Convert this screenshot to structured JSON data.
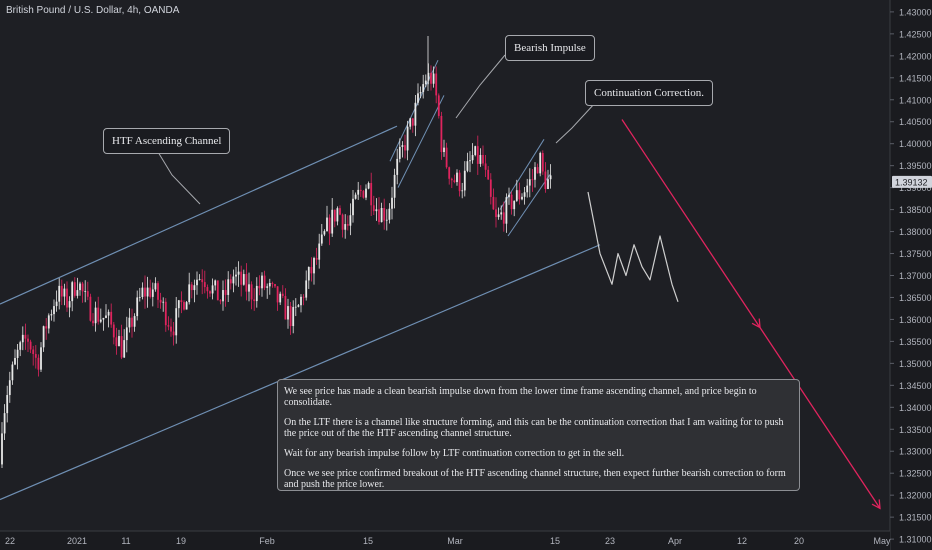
{
  "symbol_title": "British Pound / U.S. Dollar, 4h, OANDA",
  "colors": {
    "background": "#1e1f24",
    "up_candle": "#e8e8e8",
    "down_candle": "#e0245e",
    "channel_line": "#6f8fb3",
    "arrow": "#e0245e",
    "sketch": "#cfcfcf",
    "axis_text": "#b2b5be"
  },
  "annotations": {
    "htf_channel": "HTF Ascending Channel",
    "bearish_impulse": "Bearish Impulse",
    "continuation_correction": "Continuation Correction."
  },
  "note": {
    "p1": "We see price has made a clean bearish impulse down from the lower time frame ascending channel, and price begin to consolidate.",
    "p2": "On the  LTF there is a channel like structure forming, and this can be the continuation correction that I am waiting for to push the price out of the the HTF ascending channel structure.",
    "p3": "Wait for any bearish impulse follow by LTF continuation correction to get in the sell.",
    "p4": "Once we see price confirmed breakout of the HTF ascending channel structure, then expect further bearish correction to form and push the price lower."
  },
  "chart_data": {
    "type": "candlestick",
    "ylim": [
      1.309,
      1.431
    ],
    "y_ticks": [
      "1.43000",
      "1.42500",
      "1.42000",
      "1.41500",
      "1.41000",
      "1.40500",
      "1.40000",
      "1.39500",
      "1.39000",
      "1.38500",
      "1.38000",
      "1.37500",
      "1.37000",
      "1.36500",
      "1.36000",
      "1.35500",
      "1.35000",
      "1.34500",
      "1.34000",
      "1.33500",
      "1.33000",
      "1.32500",
      "1.32000",
      "1.31500",
      "1.31000"
    ],
    "x_ticks": [
      "22",
      "2021",
      "11",
      "19",
      "Feb",
      "15",
      "Mar",
      "15",
      "23",
      "Apr",
      "12",
      "20",
      "May"
    ],
    "last_price": "1.39132",
    "path": [
      [
        0,
        1.318
      ],
      [
        4,
        1.336
      ],
      [
        10,
        1.344
      ],
      [
        20,
        1.352
      ],
      [
        30,
        1.356
      ],
      [
        40,
        1.35
      ],
      [
        50,
        1.36
      ],
      [
        60,
        1.366
      ],
      [
        70,
        1.364
      ],
      [
        80,
        1.369
      ],
      [
        90,
        1.363
      ],
      [
        100,
        1.361
      ],
      [
        110,
        1.36
      ],
      [
        120,
        1.356
      ],
      [
        125,
        1.353
      ],
      [
        135,
        1.36
      ],
      [
        145,
        1.366
      ],
      [
        155,
        1.367
      ],
      [
        165,
        1.363
      ],
      [
        175,
        1.358
      ],
      [
        185,
        1.364
      ],
      [
        195,
        1.369
      ],
      [
        205,
        1.37
      ],
      [
        215,
        1.367
      ],
      [
        225,
        1.364
      ],
      [
        235,
        1.37
      ],
      [
        245,
        1.368
      ],
      [
        255,
        1.366
      ],
      [
        265,
        1.368
      ],
      [
        275,
        1.366
      ],
      [
        285,
        1.363
      ],
      [
        295,
        1.36
      ],
      [
        300,
        1.362
      ],
      [
        310,
        1.369
      ],
      [
        320,
        1.374
      ],
      [
        330,
        1.381
      ],
      [
        340,
        1.385
      ],
      [
        350,
        1.381
      ],
      [
        360,
        1.388
      ],
      [
        370,
        1.391
      ],
      [
        380,
        1.385
      ],
      [
        390,
        1.384
      ],
      [
        400,
        1.395
      ],
      [
        410,
        1.402
      ],
      [
        420,
        1.409
      ],
      [
        428,
        1.415
      ],
      [
        435,
        1.415
      ],
      [
        440,
        1.409
      ],
      [
        445,
        1.398
      ],
      [
        455,
        1.392
      ],
      [
        465,
        1.391
      ],
      [
        475,
        1.397
      ],
      [
        485,
        1.396
      ],
      [
        492,
        1.388
      ],
      [
        498,
        1.382
      ],
      [
        505,
        1.384
      ],
      [
        515,
        1.387
      ],
      [
        525,
        1.389
      ],
      [
        535,
        1.392
      ],
      [
        542,
        1.397
      ],
      [
        546,
        1.392
      ],
      [
        552,
        1.391
      ]
    ],
    "channel": {
      "upper": [
        [
          0,
          1.3635
        ],
        [
          397,
          1.404
        ]
      ],
      "lower": [
        [
          0,
          1.319
        ],
        [
          600,
          1.377
        ]
      ]
    },
    "ltf_channel_impulse": {
      "upper": [
        [
          390,
          1.396
        ],
        [
          438,
          1.419
        ]
      ],
      "lower": [
        [
          398,
          1.39
        ],
        [
          444,
          1.411
        ]
      ]
    },
    "ltf_channel_correction": {
      "upper": [
        [
          500,
          1.385
        ],
        [
          544,
          1.401
        ]
      ],
      "lower": [
        [
          508,
          1.379
        ],
        [
          550,
          1.393
        ]
      ]
    },
    "projection_arrow": [
      [
        622,
        1.4055
      ],
      [
        880,
        1.317
      ]
    ],
    "sketch_wave": [
      [
        588,
        1.389
      ],
      [
        600,
        1.375
      ],
      [
        612,
        1.368
      ],
      [
        618,
        1.375
      ],
      [
        626,
        1.37
      ],
      [
        634,
        1.377
      ],
      [
        642,
        1.372
      ],
      [
        650,
        1.369
      ],
      [
        660,
        1.379
      ],
      [
        672,
        1.368
      ],
      [
        678,
        1.364
      ]
    ]
  }
}
